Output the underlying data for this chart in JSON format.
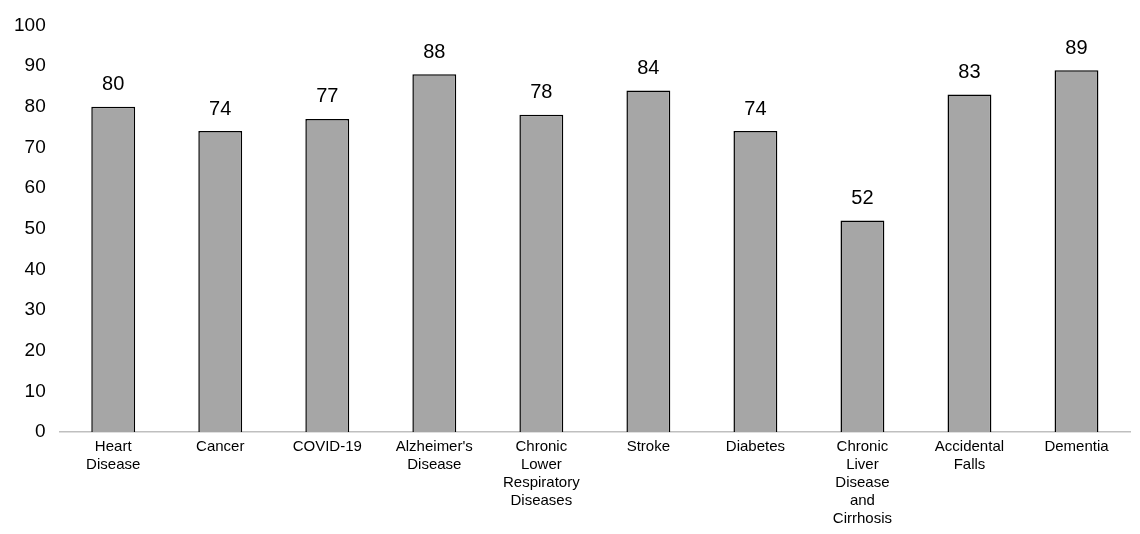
{
  "chart_data": {
    "type": "bar",
    "categories": [
      "Heart Disease",
      "Cancer",
      "COVID-19",
      "Alzheimer's Disease",
      "Chronic Lower Respiratory Diseases",
      "Stroke",
      "Diabetes",
      "Chronic Liver Disease and Cirrhosis",
      "Accidental Falls",
      "Dementia"
    ],
    "values": [
      80,
      74,
      77,
      88,
      78,
      84,
      74,
      52,
      83,
      89
    ],
    "color": "#a6a6a6",
    "ylim": [
      0,
      100
    ],
    "yticks": [
      0,
      10,
      20,
      30,
      40,
      50,
      60,
      70,
      80,
      90,
      100
    ],
    "grid": false,
    "legend": false,
    "data_labels": true
  }
}
